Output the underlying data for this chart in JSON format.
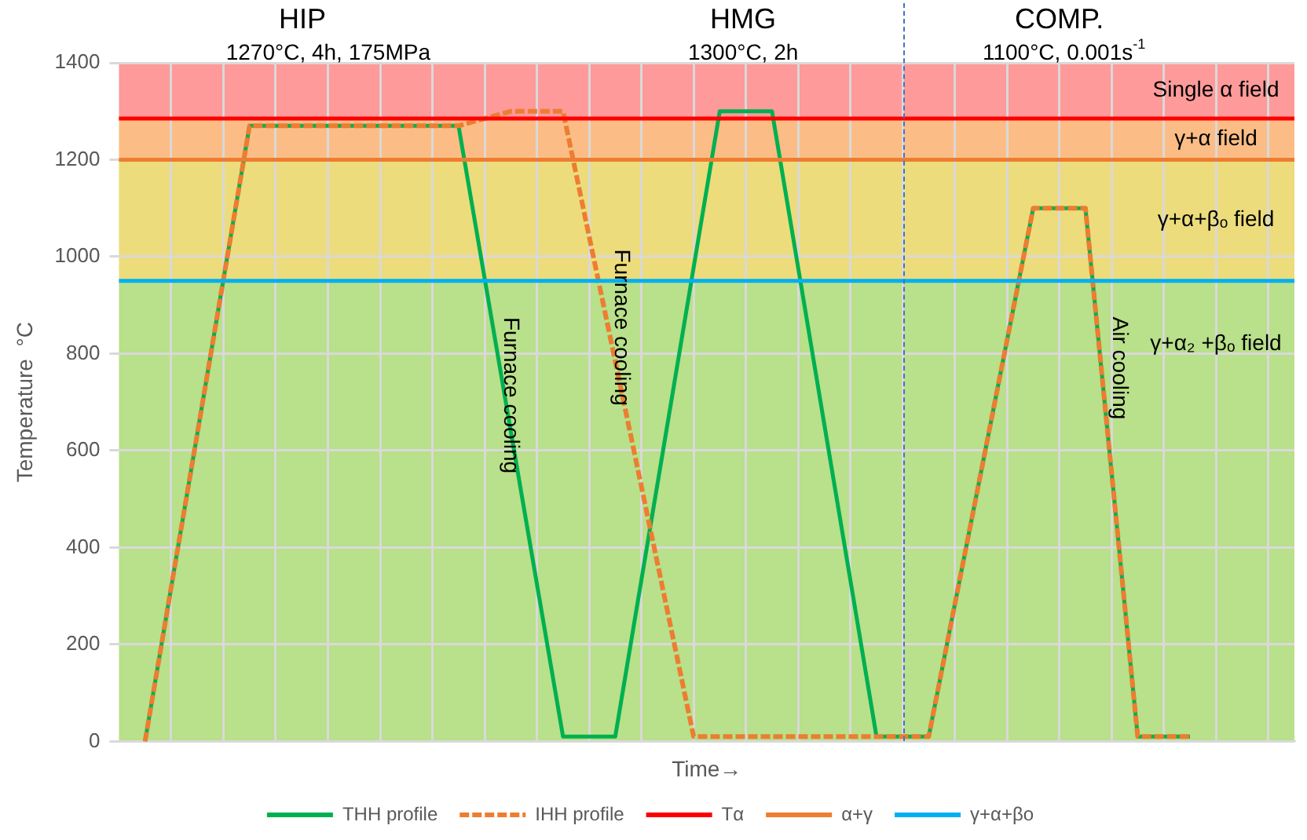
{
  "chart_data": {
    "type": "line",
    "xlabel": "Time→",
    "ylabel": "Temperature  °C",
    "categories": [
      null,
      null,
      null,
      null,
      null,
      null,
      null,
      null,
      null,
      null,
      null,
      null,
      null,
      null,
      null,
      null,
      null,
      null,
      null,
      null,
      null,
      null,
      null,
      null,
      null,
      null,
      null,
      null,
      null,
      null,
      null,
      null,
      null,
      null,
      null,
      null,
      null,
      null,
      null,
      null,
      null,
      null,
      null,
      null,
      null,
      null
    ],
    "ylim": [
      0,
      1400
    ],
    "yticks": [
      0,
      200,
      400,
      600,
      800,
      1000,
      1200,
      1400
    ],
    "tick_labels": "y",
    "grid": true,
    "legend": "bottom",
    "marker": "none",
    "series": [
      {
        "name": "THH profile",
        "color": "#00b050",
        "line_style": "solid",
        "values": [
          null,
          0,
          318,
          635,
          953,
          1270,
          1270,
          1270,
          1270,
          1270,
          1270,
          1270,
          1270,
          1270,
          955,
          640,
          325,
          10,
          10,
          10,
          333,
          655,
          978,
          1300,
          1300,
          1300,
          978,
          655,
          333,
          10,
          10,
          10,
          283,
          555,
          828,
          1100,
          1100,
          1100,
          555,
          10,
          10,
          10,
          null,
          null,
          null,
          null
        ]
      },
      {
        "name": "IHH profile",
        "color": "#ed7d31",
        "line_style": "dashed",
        "values": [
          null,
          0,
          318,
          635,
          953,
          1270,
          1270,
          1270,
          1270,
          1270,
          1270,
          1270,
          1270,
          1270,
          1285,
          1300,
          1300,
          1300,
          1042,
          784,
          526,
          268,
          10,
          10,
          10,
          10,
          10,
          10,
          10,
          10,
          10,
          10,
          283,
          555,
          828,
          1100,
          1100,
          1100,
          555,
          10,
          10,
          10,
          null,
          null,
          null,
          null
        ]
      }
    ],
    "ref_lines": [
      {
        "axis": "y",
        "value": 1285,
        "label": "Tα",
        "color": "#ff0000"
      },
      {
        "axis": "y",
        "value": 1200,
        "label": "α+γ",
        "color": "#ed7d31"
      },
      {
        "axis": "y",
        "value": 950,
        "label": "γ+α+βo",
        "color": "#00b0f0"
      }
    ],
    "bands": [
      {
        "axis": "y",
        "from": 1285,
        "to": 1400,
        "label": "Single α field",
        "color": "#fe9a9a"
      },
      {
        "axis": "y",
        "from": 1200,
        "to": 1285,
        "label": "γ+α field",
        "color": "#fbbd85"
      },
      {
        "axis": "y",
        "from": 950,
        "to": 1200,
        "label": "γ+α+βₒ field",
        "color": "#ecdc7c"
      },
      {
        "axis": "y",
        "from": 0,
        "to": 950,
        "label": "γ+α₂ +βₒ field",
        "color": "#b9e08a"
      }
    ],
    "annotations": [
      "HIP",
      "1270°C, 4h, 175MPa",
      "HMG",
      "1300°C, 2h",
      "COMP.",
      "1100°C, 0.001s$^{-1}$",
      "Furnace cooling",
      "Furnace cooling",
      "Air cooling"
    ]
  }
}
